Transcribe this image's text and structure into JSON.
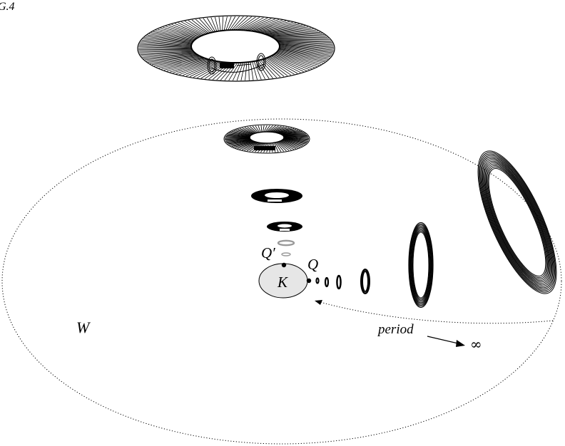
{
  "figure_label": "G.4",
  "labels": {
    "K": "K",
    "Q": "Q",
    "Q_prime": "Q′",
    "W": "W",
    "period": "period",
    "infinity": "∞"
  },
  "colors": {
    "ink": "#000000",
    "disk_fill": "#e6e6e6",
    "gray_ring": "#9a9a9a"
  }
}
